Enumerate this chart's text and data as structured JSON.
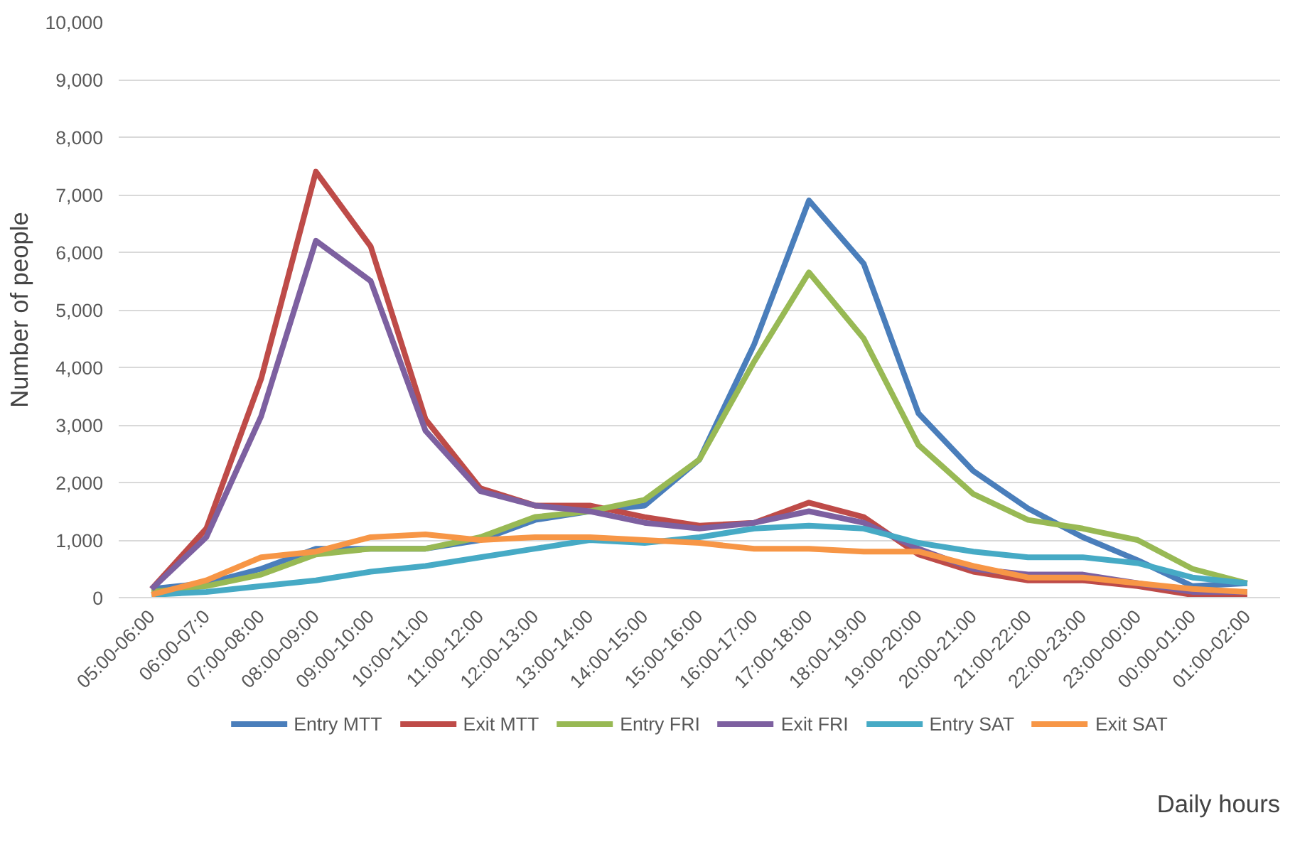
{
  "chart_data": {
    "type": "line",
    "xlabel": "Daily hours",
    "ylabel": "Number of people",
    "categories": [
      "05:00-06:00",
      "06:00-07:0",
      "07:00-08:00",
      "08:00-09:00",
      "09:00-10:00",
      "10:00-11:00",
      "11:00-12:00",
      "12:00-13:00",
      "13:00-14:00",
      "14:00-15:00",
      "15:00-16:00",
      "16:00-17:00",
      "17:00-18:00",
      "18:00-19:00",
      "19:00-20:00",
      "20:00-21:00",
      "21:00-22:00",
      "22:00-23:00",
      "23:00-00:00",
      "00:00-01:00",
      "01:00-02:00"
    ],
    "series": [
      {
        "name": "Entry MTT",
        "color": "#4a7ebb",
        "values": [
          150,
          250,
          500,
          850,
          850,
          850,
          1000,
          1350,
          1500,
          1600,
          2400,
          4400,
          6900,
          5800,
          3200,
          2200,
          1550,
          1050,
          650,
          200,
          250
        ]
      },
      {
        "name": "Exit MTT",
        "color": "#be4b48",
        "values": [
          150,
          1200,
          3800,
          7400,
          6100,
          3100,
          1900,
          1600,
          1600,
          1400,
          1250,
          1300,
          1650,
          1400,
          750,
          450,
          300,
          300,
          200,
          50,
          0
        ]
      },
      {
        "name": "Entry FRI",
        "color": "#98b954",
        "values": [
          100,
          200,
          400,
          750,
          850,
          850,
          1050,
          1400,
          1500,
          1700,
          2400,
          4100,
          5650,
          4500,
          2650,
          1800,
          1350,
          1200,
          1000,
          500,
          250
        ]
      },
      {
        "name": "Exit FRI",
        "color": "#7d60a0",
        "values": [
          150,
          1050,
          3150,
          6200,
          5500,
          2900,
          1850,
          1600,
          1500,
          1300,
          1200,
          1300,
          1500,
          1300,
          850,
          500,
          400,
          400,
          250,
          100,
          100
        ]
      },
      {
        "name": "Entry SAT",
        "color": "#46aac5",
        "values": [
          50,
          100,
          200,
          300,
          450,
          550,
          700,
          850,
          1000,
          950,
          1050,
          1200,
          1250,
          1200,
          950,
          800,
          700,
          700,
          600,
          350,
          250
        ]
      },
      {
        "name": "Exit SAT",
        "color": "#f79646",
        "values": [
          50,
          300,
          700,
          800,
          1050,
          1100,
          1000,
          1050,
          1050,
          1000,
          950,
          850,
          850,
          800,
          800,
          550,
          350,
          350,
          250,
          150,
          100
        ]
      }
    ],
    "ylim": [
      0,
      10000
    ],
    "yticks": [
      0,
      {
        "value": 1000,
        "label": "1,000"
      },
      {
        "value": 2000,
        "label": "2,000"
      },
      {
        "value": 3000,
        "label": "3,000"
      },
      {
        "value": 4000,
        "label": "4,000"
      },
      {
        "value": 5000,
        "label": "5,000"
      },
      {
        "value": 6000,
        "label": "6,000"
      },
      {
        "value": 7000,
        "label": "7,000"
      },
      {
        "value": 8000,
        "label": "8,000"
      },
      {
        "value": 9000,
        "label": "9,000"
      },
      {
        "value": 10000,
        "label": "10,000"
      }
    ],
    "grid": "y",
    "legend": "bottom",
    "marker": "none",
    "line_style": "solid"
  }
}
